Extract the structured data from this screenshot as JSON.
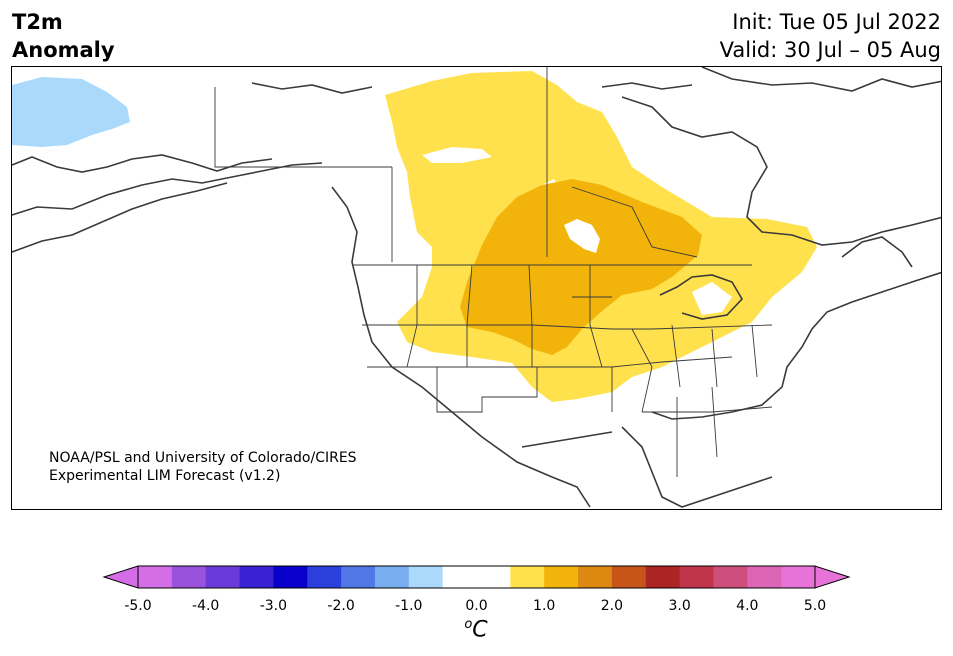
{
  "header": {
    "title_line1": "T2m",
    "title_line2": "Anomaly",
    "init": "Init: Tue 05 Jul 2022",
    "valid": "Valid: 30 Jul – 05 Aug"
  },
  "credit": {
    "line1": "NOAA/PSL and University of Colorado/CIRES",
    "line2": "Experimental LIM Forecast (v1.2)"
  },
  "colorbar": {
    "unit_base": "C",
    "unit_sup": "o",
    "ticks": [
      "-5.0",
      "-4.0",
      "-3.0",
      "-2.0",
      "-1.0",
      "0.0",
      "1.0",
      "2.0",
      "3.0",
      "4.0",
      "5.0"
    ],
    "colors": [
      "#d56ee6",
      "#9a52dc",
      "#6a3bd8",
      "#3a22d2",
      "#0a00cc",
      "#2a3fdc",
      "#5177e6",
      "#78aef0",
      "#aad9fb",
      "#ffffff",
      "#ffe14d",
      "#f2b40a",
      "#dd8810",
      "#c75518",
      "#ad2424",
      "#c0354a",
      "#cf4f7c",
      "#dc65b6",
      "#e873d8"
    ],
    "under_color": "#d56ee6",
    "over_color": "#e873d8"
  },
  "map": {
    "anomaly_regions": [
      {
        "name": "cold-anomaly-region",
        "class": "-1.0 to -0.5",
        "color": "#aad9fb"
      },
      {
        "name": "warm-anomaly-region-1",
        "class": "0.5 to 1.0",
        "color": "#ffe14d"
      },
      {
        "name": "warm-anomaly-region-2",
        "class": "1.0 to 1.5",
        "color": "#f2b40a"
      }
    ]
  }
}
